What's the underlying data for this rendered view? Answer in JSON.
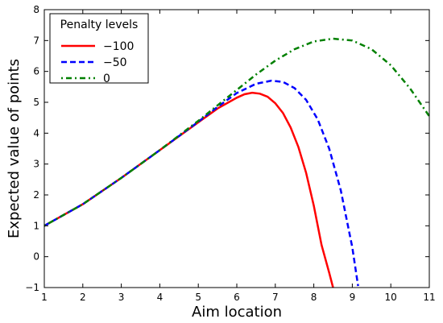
{
  "chart_data": {
    "type": "line",
    "title": "",
    "xlabel": "Aim location",
    "ylabel": "Expected value of points",
    "xlim": [
      1,
      11
    ],
    "ylim": [
      -1,
      8
    ],
    "xticks": [
      "1",
      "2",
      "3",
      "4",
      "5",
      "6",
      "7",
      "8",
      "9",
      "10",
      "11"
    ],
    "yticks": [
      "−1",
      "0",
      "1",
      "2",
      "3",
      "4",
      "5",
      "6",
      "7",
      "8"
    ],
    "grid": false,
    "legend": {
      "title": "Penalty levels",
      "placement": "top-left"
    },
    "series": [
      {
        "name": "−100",
        "color": "#ff0000",
        "style": "solid",
        "x": [
          1,
          2,
          3,
          4,
          5,
          5.5,
          6,
          6.2,
          6.4,
          6.6,
          6.8,
          7,
          7.2,
          7.4,
          7.6,
          7.8,
          8,
          8.2,
          8.4,
          8.5
        ],
        "y": [
          1.0,
          1.7,
          2.55,
          3.45,
          4.35,
          4.8,
          5.15,
          5.26,
          5.31,
          5.28,
          5.18,
          4.97,
          4.65,
          4.18,
          3.55,
          2.72,
          1.65,
          0.38,
          -0.52,
          -1.0
        ]
      },
      {
        "name": "−50",
        "color": "#0000ff",
        "style": "dashed",
        "x": [
          1,
          2,
          3,
          4,
          5,
          5.5,
          6,
          6.5,
          6.9,
          7.2,
          7.5,
          7.8,
          8.1,
          8.4,
          8.7,
          9.0,
          9.15
        ],
        "y": [
          1.0,
          1.7,
          2.55,
          3.45,
          4.37,
          4.85,
          5.3,
          5.6,
          5.7,
          5.66,
          5.46,
          5.08,
          4.45,
          3.5,
          2.15,
          0.3,
          -0.95
        ]
      },
      {
        "name": "0",
        "color": "#008000",
        "style": "dashdot",
        "x": [
          1,
          2,
          3,
          4,
          5,
          5.5,
          6,
          6.5,
          7,
          7.5,
          8,
          8.5,
          9,
          9.5,
          10,
          10.5,
          11
        ],
        "y": [
          1.0,
          1.7,
          2.55,
          3.45,
          4.4,
          4.9,
          5.4,
          5.9,
          6.35,
          6.72,
          6.97,
          7.06,
          7.0,
          6.72,
          6.2,
          5.45,
          4.55
        ]
      }
    ]
  }
}
